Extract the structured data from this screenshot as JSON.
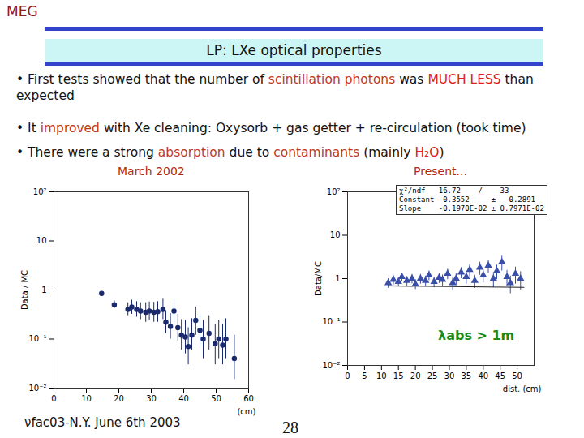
{
  "header": "MEG",
  "title": "LP: LXe optical properties",
  "bullets": [
    [
      {
        "text": "• First tests showed that the number of "
      },
      {
        "text": "scintillation photons",
        "color": "#c0391b"
      },
      {
        "text": " was "
      },
      {
        "text": "MUCH LESS",
        "color": "#e0201b"
      },
      {
        "text": " than expected"
      }
    ],
    [
      {
        "text": "• It "
      },
      {
        "text": "improved",
        "color": "#c0391b"
      },
      {
        "text": " with Xe cleaning: Oxysorb + gas getter + re-circulation (took time)"
      }
    ],
    [
      {
        "text": "• There were a strong "
      },
      {
        "text": "absorption",
        "color": "#c0391b"
      },
      {
        "text": " due to "
      },
      {
        "text": "contaminants",
        "color": "#c0391b"
      },
      {
        "text": " (mainly "
      },
      {
        "text": "H₂O",
        "color": "#e0201b"
      },
      {
        "text": ")"
      }
    ]
  ],
  "footer": "νfac03-N.Y. June 6th 2003",
  "page_number": "28",
  "chart_data": [
    {
      "type": "scatter",
      "title": "March 2002",
      "x_label": "(cm)",
      "y_label": "Data / MC",
      "color": "#1a2a6c",
      "marker": "circle",
      "log": "y",
      "xlim": [
        0,
        60
      ],
      "xticks": [
        0,
        10,
        20,
        30,
        40,
        50,
        60
      ],
      "ylim": [
        0.01,
        100
      ],
      "yticks": [
        {
          "value": 0.01,
          "label": "10⁻²"
        },
        {
          "value": 0.1,
          "label": "10⁻¹"
        },
        {
          "value": 1,
          "label": "1"
        },
        {
          "value": 10,
          "label": "10"
        },
        {
          "value": 100,
          "label": "10²"
        }
      ],
      "x": [
        14.7,
        18.6,
        22.8,
        24,
        25.5,
        26.7,
        28.3,
        29.4,
        30.8,
        32,
        33.6,
        34.5,
        35.9,
        37,
        38.2,
        39.3,
        40.5,
        41.4,
        42.5,
        43.7,
        45,
        46,
        47.8,
        49.7,
        50.8,
        52,
        53,
        55.6
      ],
      "values": [
        0.85,
        0.5,
        0.4,
        0.45,
        0.4,
        0.37,
        0.35,
        0.37,
        0.35,
        0.36,
        0.4,
        0.22,
        0.18,
        0.37,
        0.17,
        0.12,
        0.11,
        0.07,
        0.12,
        0.24,
        0.15,
        0.1,
        0.13,
        0.08,
        0.1,
        0.075,
        0.1,
        0.04
      ],
      "y_low": [
        0.8,
        0.42,
        0.3,
        0.32,
        0.28,
        0.25,
        0.22,
        0.24,
        0.22,
        0.22,
        0.25,
        0.13,
        0.1,
        0.22,
        0.09,
        0.06,
        0.05,
        0.03,
        0.06,
        0.12,
        0.07,
        0.04,
        0.06,
        0.03,
        0.04,
        0.03,
        0.04,
        0.015
      ],
      "y_high": [
        0.9,
        0.6,
        0.55,
        0.62,
        0.58,
        0.55,
        0.55,
        0.57,
        0.56,
        0.58,
        0.65,
        0.38,
        0.33,
        0.62,
        0.32,
        0.25,
        0.24,
        0.17,
        0.26,
        0.45,
        0.32,
        0.24,
        0.3,
        0.2,
        0.24,
        0.2,
        0.26,
        0.12
      ]
    },
    {
      "type": "scatter",
      "title": "Present...",
      "x_label": "dist. (cm)",
      "y_label": "Data/MC",
      "color": "#3a4fa8",
      "marker": "triangle",
      "log": "y",
      "xlim": [
        0,
        55
      ],
      "xticks": [
        0,
        5,
        10,
        15,
        20,
        25,
        30,
        35,
        40,
        45,
        50
      ],
      "ylim": [
        0.01,
        100
      ],
      "yticks": [
        {
          "value": 0.01,
          "label": "10⁻²"
        },
        {
          "value": 0.1,
          "label": "10⁻¹"
        },
        {
          "value": 1,
          "label": "1"
        },
        {
          "value": 10,
          "label": "10"
        },
        {
          "value": 100,
          "label": "10²"
        }
      ],
      "x": [
        12,
        13.5,
        15,
        16,
        17.5,
        19,
        20,
        21.5,
        23,
        24,
        25.5,
        27,
        28,
        29.5,
        31,
        32,
        33.5,
        35,
        36,
        37.5,
        39,
        40,
        41.5,
        43,
        44,
        45.5,
        47,
        48,
        49.5,
        51
      ],
      "values": [
        0.8,
        0.95,
        0.85,
        1.1,
        0.9,
        1.0,
        0.75,
        1.0,
        0.9,
        1.2,
        0.85,
        1.05,
        0.95,
        1.3,
        0.8,
        1.0,
        1.4,
        1.1,
        1.6,
        0.9,
        1.8,
        1.2,
        2.0,
        1.0,
        1.5,
        2.4,
        1.1,
        0.8,
        1.3,
        1.0
      ],
      "y_low": [
        0.6,
        0.72,
        0.65,
        0.85,
        0.68,
        0.76,
        0.56,
        0.75,
        0.66,
        0.9,
        0.62,
        0.78,
        0.68,
        0.95,
        0.55,
        0.7,
        1.0,
        0.75,
        1.1,
        0.6,
        1.2,
        0.8,
        1.3,
        0.62,
        0.95,
        1.5,
        0.65,
        0.45,
        0.75,
        0.55
      ],
      "y_high": [
        1.0,
        1.18,
        1.05,
        1.35,
        1.12,
        1.25,
        0.95,
        1.25,
        1.15,
        1.5,
        1.08,
        1.32,
        1.22,
        1.65,
        1.05,
        1.3,
        1.8,
        1.45,
        2.1,
        1.2,
        2.4,
        1.6,
        2.7,
        1.38,
        2.05,
        3.3,
        1.55,
        1.15,
        1.85,
        1.45
      ],
      "fit": {
        "x": [
          12,
          52
        ],
        "values": [
          0.68,
          0.63
        ]
      },
      "stats": [
        {
          "name": "χ²/ndf",
          "value": "16.72    /    33"
        },
        {
          "name": "Constant",
          "value": "-0.3552     ±   0.2891"
        },
        {
          "name": "Slope",
          "value": "-0.1970E-02 ± 0.7971E-02"
        }
      ],
      "annotation": "λabs > 1m"
    }
  ]
}
